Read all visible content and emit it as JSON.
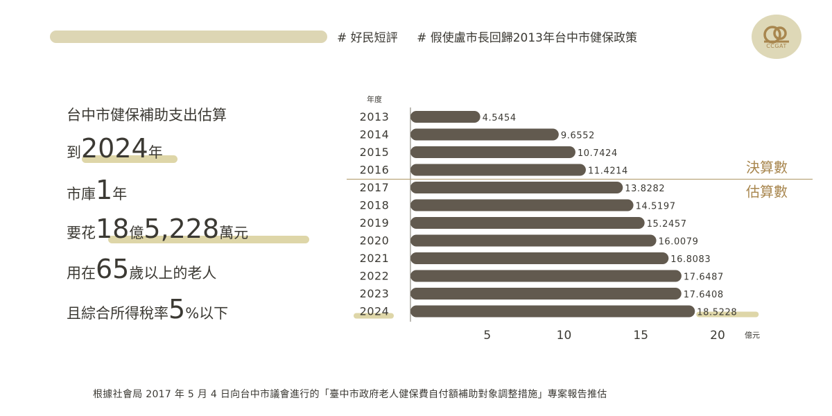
{
  "header": {
    "tags": [
      "# 好民短評",
      "# 假使盧市長回歸2013年台中市健保政策"
    ],
    "logo_text": "CCGAT"
  },
  "summary": {
    "line1": "台中市健保補助支出估算",
    "line2_prefix": "到",
    "line2_big": "2024",
    "line2_suffix": "年",
    "line3_prefix": "市庫",
    "line3_big": "1",
    "line3_suffix": "年",
    "line4_prefix": "要花",
    "line4_big1": "18",
    "line4_mid": "億",
    "line4_big2": "5,228",
    "line4_suffix": "萬元",
    "line5_prefix": "用在",
    "line5_big": "65",
    "line5_suffix": "歲以上的老人",
    "line6_prefix": "且綜合所得稅率",
    "line6_big": "5",
    "line6_suffix": "%以下"
  },
  "chart_data": {
    "type": "bar",
    "orientation": "horizontal",
    "ylabel": "年度",
    "xlabel": "億元",
    "categories": [
      "2013",
      "2014",
      "2015",
      "2016",
      "2017",
      "2018",
      "2019",
      "2020",
      "2021",
      "2022",
      "2023",
      "2024"
    ],
    "values": [
      4.5454,
      9.6552,
      10.7424,
      11.4214,
      13.8282,
      14.5197,
      15.2457,
      16.0079,
      16.8083,
      17.6487,
      17.6408,
      18.5228
    ],
    "value_labels": [
      "4.5454",
      "9.6552",
      "10.7424",
      "11.4214",
      "13.8282",
      "14.5197",
      "15.2457",
      "16.0079",
      "16.8083",
      "17.6487",
      "17.6408",
      "18.5228"
    ],
    "xlim": [
      0,
      21.5
    ],
    "xticks": [
      5,
      10,
      15,
      20
    ],
    "annotations": {
      "actual": "決算數",
      "estimated": "估算數"
    },
    "colors": {
      "bar": "#625a4f",
      "accent": "#ded6a8",
      "annotation": "#a8864e"
    }
  },
  "footnote": "根據社會局 2017 年 5 月 4 日向台中市議會進行的「臺中市政府老人健保費自付額補助對象調整措施」專案報告推估"
}
